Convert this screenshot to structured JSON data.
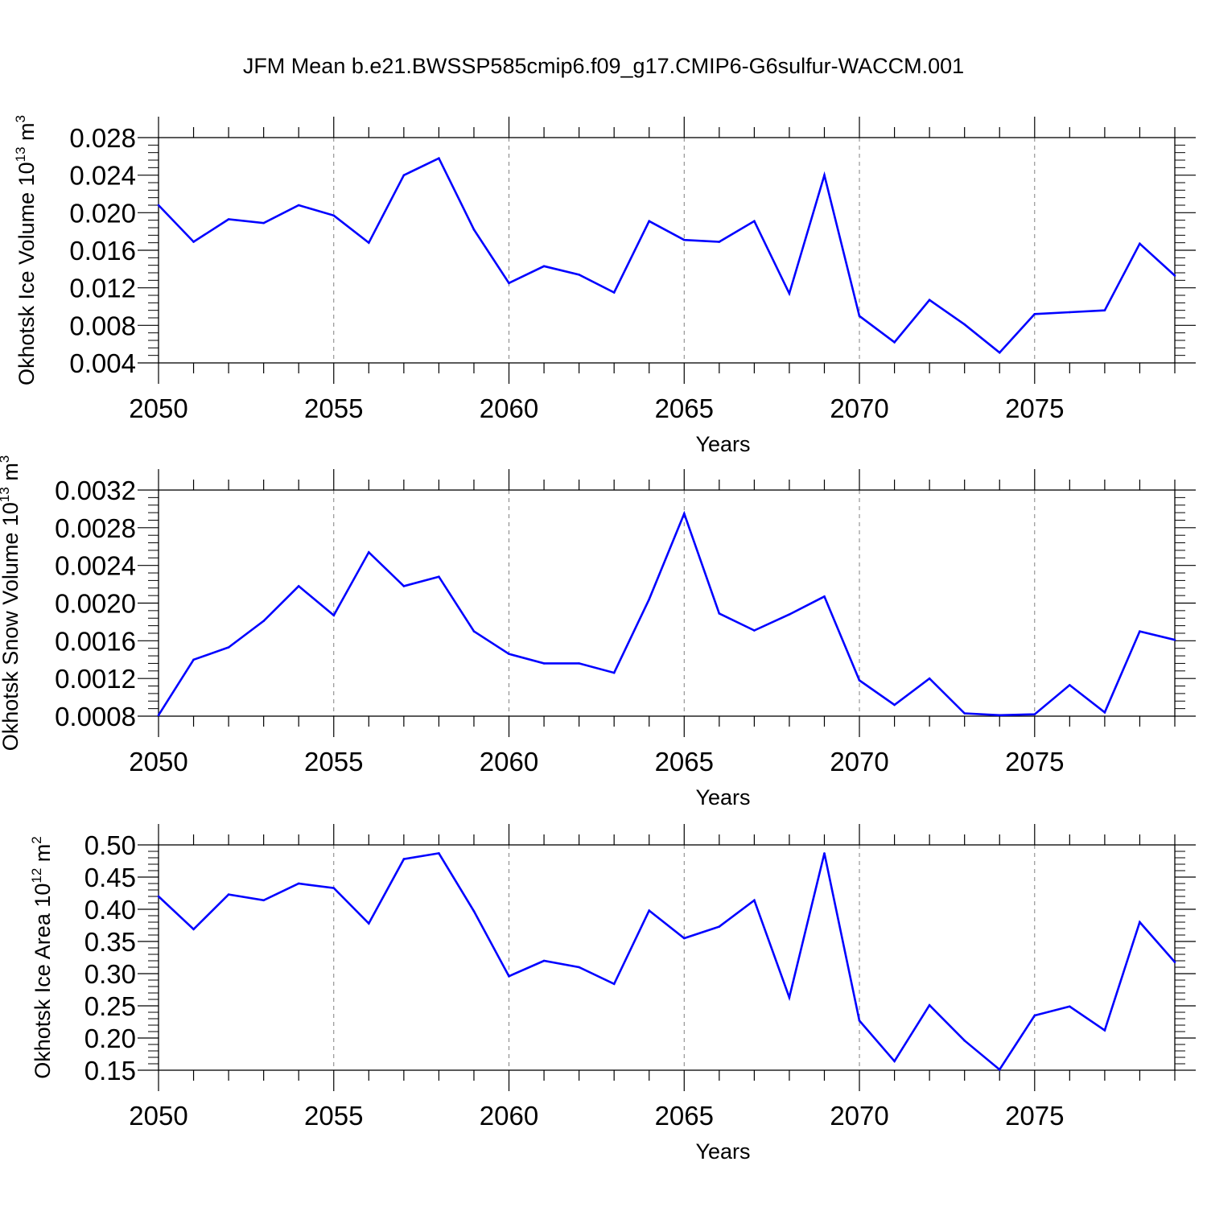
{
  "title": "JFM Mean b.e21.BWSSP585cmip6.f09_g17.CMIP6-G6sulfur-WACCM.001",
  "colors": {
    "line": "#0000ff",
    "axis": "#000000",
    "grid": "#808080"
  },
  "chart_data": [
    {
      "type": "line",
      "ylabel": {
        "text": "Okhotsk Ice Volume 10",
        "exp": "13",
        "unit": " m",
        "unit_exp": "3"
      },
      "xlabel": "Years",
      "ylim": [
        0.004,
        0.028
      ],
      "xlim": [
        2050,
        2079
      ],
      "yticks": [
        "0.004",
        "0.008",
        "0.012",
        "0.016",
        "0.020",
        "0.024",
        "0.028"
      ],
      "xticks": [
        "2050",
        "2055",
        "2060",
        "2065",
        "2070",
        "2075"
      ],
      "grid": "vertical dashed at major x ticks",
      "x": [
        2050,
        2051,
        2052,
        2053,
        2054,
        2055,
        2056,
        2057,
        2058,
        2059,
        2060,
        2061,
        2062,
        2063,
        2064,
        2065,
        2066,
        2067,
        2068,
        2069,
        2070,
        2071,
        2072,
        2073,
        2074,
        2075,
        2076,
        2077,
        2078,
        2079
      ],
      "values": [
        0.0208,
        0.0169,
        0.0193,
        0.0189,
        0.0208,
        0.0197,
        0.0168,
        0.024,
        0.0258,
        0.0182,
        0.0125,
        0.0143,
        0.0134,
        0.0115,
        0.0191,
        0.0171,
        0.0169,
        0.0191,
        0.0114,
        0.024,
        0.009,
        0.0062,
        0.0107,
        0.0081,
        0.0051,
        0.0092,
        0.0094,
        0.0096,
        0.0167,
        0.0133
      ]
    },
    {
      "type": "line",
      "ylabel": {
        "text": "Okhotsk Snow Volume 10",
        "exp": "13",
        "unit": " m",
        "unit_exp": "3"
      },
      "xlabel": "Years",
      "ylim": [
        0.0008,
        0.0032
      ],
      "xlim": [
        2050,
        2079
      ],
      "yticks": [
        "0.0008",
        "0.0012",
        "0.0016",
        "0.0020",
        "0.0024",
        "0.0028",
        "0.0032"
      ],
      "xticks": [
        "2050",
        "2055",
        "2060",
        "2065",
        "2070",
        "2075"
      ],
      "grid": "vertical dashed at major x ticks",
      "x": [
        2050,
        2051,
        2052,
        2053,
        2054,
        2055,
        2056,
        2057,
        2058,
        2059,
        2060,
        2061,
        2062,
        2063,
        2064,
        2065,
        2066,
        2067,
        2068,
        2069,
        2070,
        2071,
        2072,
        2073,
        2074,
        2075,
        2076,
        2077,
        2078,
        2079
      ],
      "values": [
        0.00081,
        0.0014,
        0.00153,
        0.00181,
        0.00218,
        0.00187,
        0.00254,
        0.00218,
        0.00228,
        0.0017,
        0.00146,
        0.00136,
        0.00136,
        0.00126,
        0.00204,
        0.00295,
        0.00189,
        0.00171,
        0.00188,
        0.00207,
        0.00118,
        0.00092,
        0.0012,
        0.00083,
        0.00081,
        0.00082,
        0.00113,
        0.00084,
        0.0017,
        0.00161
      ]
    },
    {
      "type": "line",
      "ylabel": {
        "text": "Okhotsk Ice Area 10",
        "exp": "12",
        "unit": " m",
        "unit_exp": "2"
      },
      "xlabel": "Years",
      "ylim": [
        0.15,
        0.5
      ],
      "xlim": [
        2050,
        2079
      ],
      "yticks": [
        "0.15",
        "0.20",
        "0.25",
        "0.30",
        "0.35",
        "0.40",
        "0.45",
        "0.50"
      ],
      "xticks": [
        "2050",
        "2055",
        "2060",
        "2065",
        "2070",
        "2075"
      ],
      "grid": "vertical dashed at major x ticks",
      "x": [
        2050,
        2051,
        2052,
        2053,
        2054,
        2055,
        2056,
        2057,
        2058,
        2059,
        2060,
        2061,
        2062,
        2063,
        2064,
        2065,
        2066,
        2067,
        2068,
        2069,
        2070,
        2071,
        2072,
        2073,
        2074,
        2075,
        2076,
        2077,
        2078,
        2079
      ],
      "values": [
        0.42,
        0.369,
        0.423,
        0.414,
        0.44,
        0.433,
        0.378,
        0.478,
        0.487,
        0.397,
        0.296,
        0.32,
        0.31,
        0.284,
        0.398,
        0.355,
        0.373,
        0.414,
        0.263,
        0.487,
        0.227,
        0.164,
        0.251,
        0.196,
        0.151,
        0.235,
        0.249,
        0.212,
        0.38,
        0.318
      ]
    }
  ]
}
